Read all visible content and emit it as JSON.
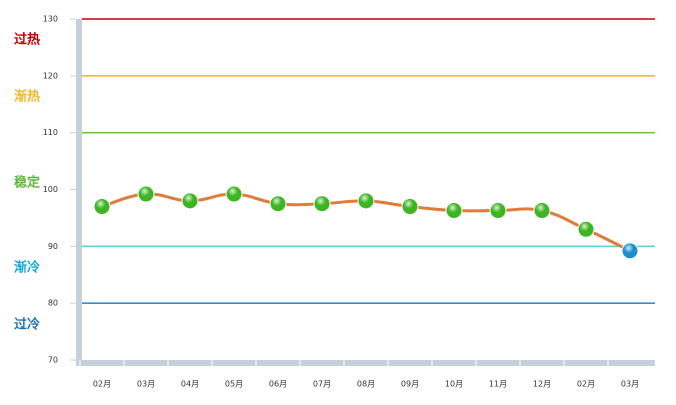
{
  "chart_data": {
    "type": "line",
    "categories": [
      "02月",
      "03月",
      "04月",
      "05月",
      "06月",
      "07月",
      "08月",
      "09月",
      "10月",
      "11月",
      "12月",
      "02月",
      "03月"
    ],
    "series": [
      {
        "color": "#e07b39",
        "values": [
          97,
          99.2,
          98,
          99.2,
          97.5,
          97.5,
          98,
          97,
          96.3,
          96.3,
          96.3,
          93,
          89.2
        ]
      }
    ],
    "marker_color": "#3cb521",
    "last_marker_color": "#1a8fd0",
    "ylim": [
      70,
      130
    ],
    "yticks": [
      70,
      80,
      90,
      100,
      110,
      120,
      130
    ],
    "reference_lines": [
      {
        "value": 130,
        "color": "#c00000"
      },
      {
        "value": 120,
        "color": "#f5b82e"
      },
      {
        "value": 110,
        "color": "#6cc644"
      },
      {
        "value": 90,
        "color": "#5fd3d3"
      },
      {
        "value": 80,
        "color": "#2f8fd6"
      }
    ],
    "zones": [
      {
        "label": "过热",
        "color": "#c00000"
      },
      {
        "label": "渐热",
        "color": "#f5b82e"
      },
      {
        "label": "稳定",
        "color": "#5fb83a"
      },
      {
        "label": "渐冷",
        "color": "#1aa8d8"
      },
      {
        "label": "过冷",
        "color": "#1f73b7"
      }
    ]
  }
}
